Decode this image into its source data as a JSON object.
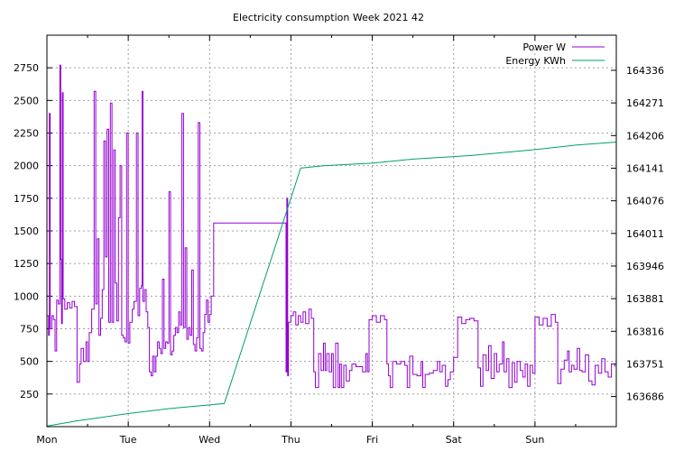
{
  "chart_data": {
    "type": "line",
    "title": "Electricity consumption Week 2021 42",
    "x_tick_labels": [
      "Mon",
      "Tue",
      "Wed",
      "Thu",
      "Fri",
      "Sat",
      "Sun"
    ],
    "x_range_days": [
      0,
      7.0
    ],
    "y_left_range": [
      0,
      3000
    ],
    "y_left_ticks": [
      250,
      500,
      750,
      1000,
      1250,
      1500,
      1750,
      2000,
      2250,
      2500,
      2750
    ],
    "y_right_range": [
      163626,
      164406
    ],
    "y_right_ticks": [
      163686,
      163751,
      163816,
      163881,
      163946,
      164011,
      164076,
      164141,
      164206,
      164271,
      164336
    ],
    "grid": true,
    "legend_position": "top-right",
    "series": [
      {
        "name": "Power W",
        "color": "#9400d3",
        "axis": "left",
        "points": [
          [
            0.0,
            850
          ],
          [
            0.02,
            700
          ],
          [
            0.03,
            2400
          ],
          [
            0.04,
            750
          ],
          [
            0.06,
            850
          ],
          [
            0.08,
            820
          ],
          [
            0.1,
            580
          ],
          [
            0.12,
            970
          ],
          [
            0.14,
            940
          ],
          [
            0.16,
            2770
          ],
          [
            0.17,
            1280
          ],
          [
            0.18,
            790
          ],
          [
            0.19,
            2560
          ],
          [
            0.2,
            980
          ],
          [
            0.22,
            900
          ],
          [
            0.25,
            950
          ],
          [
            0.28,
            910
          ],
          [
            0.31,
            960
          ],
          [
            0.34,
            920
          ],
          [
            0.37,
            340
          ],
          [
            0.4,
            480
          ],
          [
            0.42,
            600
          ],
          [
            0.45,
            500
          ],
          [
            0.48,
            650
          ],
          [
            0.5,
            500
          ],
          [
            0.52,
            720
          ],
          [
            0.55,
            900
          ],
          [
            0.58,
            2570
          ],
          [
            0.6,
            940
          ],
          [
            0.62,
            1440
          ],
          [
            0.64,
            700
          ],
          [
            0.66,
            830
          ],
          [
            0.68,
            1050
          ],
          [
            0.7,
            2190
          ],
          [
            0.72,
            1300
          ],
          [
            0.74,
            2280
          ],
          [
            0.76,
            800
          ],
          [
            0.78,
            2480
          ],
          [
            0.8,
            800
          ],
          [
            0.82,
            2120
          ],
          [
            0.84,
            1100
          ],
          [
            0.86,
            810
          ],
          [
            0.88,
            1600
          ],
          [
            0.9,
            2000
          ],
          [
            0.92,
            700
          ],
          [
            0.94,
            680
          ],
          [
            0.96,
            650
          ],
          [
            0.98,
            2250
          ],
          [
            1.0,
            640
          ],
          [
            1.02,
            800
          ],
          [
            1.05,
            900
          ],
          [
            1.07,
            960
          ],
          [
            1.1,
            2250
          ],
          [
            1.12,
            850
          ],
          [
            1.14,
            1060
          ],
          [
            1.16,
            1080
          ],
          [
            1.17,
            2570
          ],
          [
            1.18,
            960
          ],
          [
            1.2,
            1050
          ],
          [
            1.22,
            880
          ],
          [
            1.24,
            760
          ],
          [
            1.26,
            420
          ],
          [
            1.28,
            390
          ],
          [
            1.3,
            540
          ],
          [
            1.32,
            420
          ],
          [
            1.34,
            540
          ],
          [
            1.36,
            650
          ],
          [
            1.38,
            600
          ],
          [
            1.4,
            560
          ],
          [
            1.42,
            1130
          ],
          [
            1.44,
            600
          ],
          [
            1.46,
            650
          ],
          [
            1.48,
            640
          ],
          [
            1.5,
            1800
          ],
          [
            1.52,
            550
          ],
          [
            1.54,
            580
          ],
          [
            1.56,
            700
          ],
          [
            1.58,
            760
          ],
          [
            1.6,
            720
          ],
          [
            1.62,
            880
          ],
          [
            1.64,
            780
          ],
          [
            1.66,
            2400
          ],
          [
            1.68,
            760
          ],
          [
            1.7,
            1370
          ],
          [
            1.72,
            670
          ],
          [
            1.74,
            760
          ],
          [
            1.76,
            700
          ],
          [
            1.78,
            1200
          ],
          [
            1.8,
            630
          ],
          [
            1.82,
            580
          ],
          [
            1.84,
            680
          ],
          [
            1.86,
            2330
          ],
          [
            1.88,
            600
          ],
          [
            1.9,
            580
          ],
          [
            1.92,
            720
          ],
          [
            1.94,
            860
          ],
          [
            1.96,
            970
          ],
          [
            1.98,
            800
          ],
          [
            2.0,
            860
          ],
          [
            2.02,
            1000
          ],
          [
            2.05,
            1560
          ],
          [
            2.93,
            1560
          ],
          [
            2.94,
            420
          ],
          [
            2.95,
            1750
          ],
          [
            2.96,
            390
          ],
          [
            2.97,
            800
          ],
          [
            3.0,
            850
          ],
          [
            3.03,
            880
          ],
          [
            3.06,
            780
          ],
          [
            3.09,
            850
          ],
          [
            3.12,
            800
          ],
          [
            3.15,
            880
          ],
          [
            3.18,
            790
          ],
          [
            3.22,
            900
          ],
          [
            3.25,
            830
          ],
          [
            3.28,
            420
          ],
          [
            3.3,
            300
          ],
          [
            3.34,
            560
          ],
          [
            3.37,
            430
          ],
          [
            3.4,
            640
          ],
          [
            3.42,
            430
          ],
          [
            3.44,
            560
          ],
          [
            3.47,
            420
          ],
          [
            3.5,
            560
          ],
          [
            3.52,
            300
          ],
          [
            3.55,
            640
          ],
          [
            3.58,
            300
          ],
          [
            3.6,
            480
          ],
          [
            3.62,
            300
          ],
          [
            3.65,
            470
          ],
          [
            3.68,
            350
          ],
          [
            3.72,
            430
          ],
          [
            3.75,
            480
          ],
          [
            3.8,
            460
          ],
          [
            3.84,
            460
          ],
          [
            3.88,
            420
          ],
          [
            3.92,
            560
          ],
          [
            3.94,
            420
          ],
          [
            3.96,
            820
          ],
          [
            4.0,
            850
          ],
          [
            4.05,
            800
          ],
          [
            4.1,
            850
          ],
          [
            4.15,
            820
          ],
          [
            4.18,
            480
          ],
          [
            4.2,
            390
          ],
          [
            4.22,
            300
          ],
          [
            4.25,
            500
          ],
          [
            4.3,
            480
          ],
          [
            4.35,
            500
          ],
          [
            4.4,
            470
          ],
          [
            4.43,
            300
          ],
          [
            4.46,
            540
          ],
          [
            4.5,
            400
          ],
          [
            4.55,
            390
          ],
          [
            4.6,
            500
          ],
          [
            4.62,
            300
          ],
          [
            4.65,
            400
          ],
          [
            4.7,
            410
          ],
          [
            4.75,
            430
          ],
          [
            4.8,
            500
          ],
          [
            4.83,
            420
          ],
          [
            4.86,
            470
          ],
          [
            4.9,
            310
          ],
          [
            4.93,
            360
          ],
          [
            4.96,
            420
          ],
          [
            5.0,
            530
          ],
          [
            5.05,
            840
          ],
          [
            5.1,
            790
          ],
          [
            5.15,
            820
          ],
          [
            5.2,
            830
          ],
          [
            5.25,
            810
          ],
          [
            5.3,
            450
          ],
          [
            5.33,
            310
          ],
          [
            5.36,
            550
          ],
          [
            5.4,
            430
          ],
          [
            5.43,
            620
          ],
          [
            5.46,
            370
          ],
          [
            5.5,
            560
          ],
          [
            5.53,
            420
          ],
          [
            5.56,
            480
          ],
          [
            5.6,
            650
          ],
          [
            5.62,
            420
          ],
          [
            5.65,
            520
          ],
          [
            5.68,
            300
          ],
          [
            5.72,
            490
          ],
          [
            5.75,
            340
          ],
          [
            5.78,
            500
          ],
          [
            5.82,
            430
          ],
          [
            5.85,
            380
          ],
          [
            5.88,
            480
          ],
          [
            5.91,
            310
          ],
          [
            5.94,
            470
          ],
          [
            5.97,
            410
          ],
          [
            6.0,
            840
          ],
          [
            6.05,
            780
          ],
          [
            6.1,
            830
          ],
          [
            6.15,
            770
          ],
          [
            6.2,
            860
          ],
          [
            6.25,
            800
          ],
          [
            6.28,
            330
          ],
          [
            6.32,
            440
          ],
          [
            6.36,
            510
          ],
          [
            6.4,
            580
          ],
          [
            6.42,
            420
          ],
          [
            6.45,
            470
          ],
          [
            6.48,
            440
          ],
          [
            6.52,
            600
          ],
          [
            6.55,
            430
          ],
          [
            6.58,
            420
          ],
          [
            6.62,
            550
          ],
          [
            6.66,
            350
          ],
          [
            6.7,
            320
          ],
          [
            6.74,
            470
          ],
          [
            6.78,
            410
          ],
          [
            6.82,
            520
          ],
          [
            6.86,
            420
          ],
          [
            6.9,
            380
          ],
          [
            6.94,
            480
          ],
          [
            6.98,
            460
          ]
        ]
      },
      {
        "name": "Energy KWh",
        "color": "#009e73",
        "axis": "right",
        "points": [
          [
            0.0,
            163627
          ],
          [
            0.35,
            163637
          ],
          [
            1.0,
            163652
          ],
          [
            1.5,
            163662
          ],
          [
            2.18,
            163672
          ],
          [
            3.12,
            164141
          ],
          [
            3.4,
            164146
          ],
          [
            4.0,
            164151
          ],
          [
            4.5,
            164159
          ],
          [
            5.2,
            164166
          ],
          [
            6.0,
            164178
          ],
          [
            6.5,
            164187
          ],
          [
            7.0,
            164193
          ]
        ]
      }
    ]
  }
}
